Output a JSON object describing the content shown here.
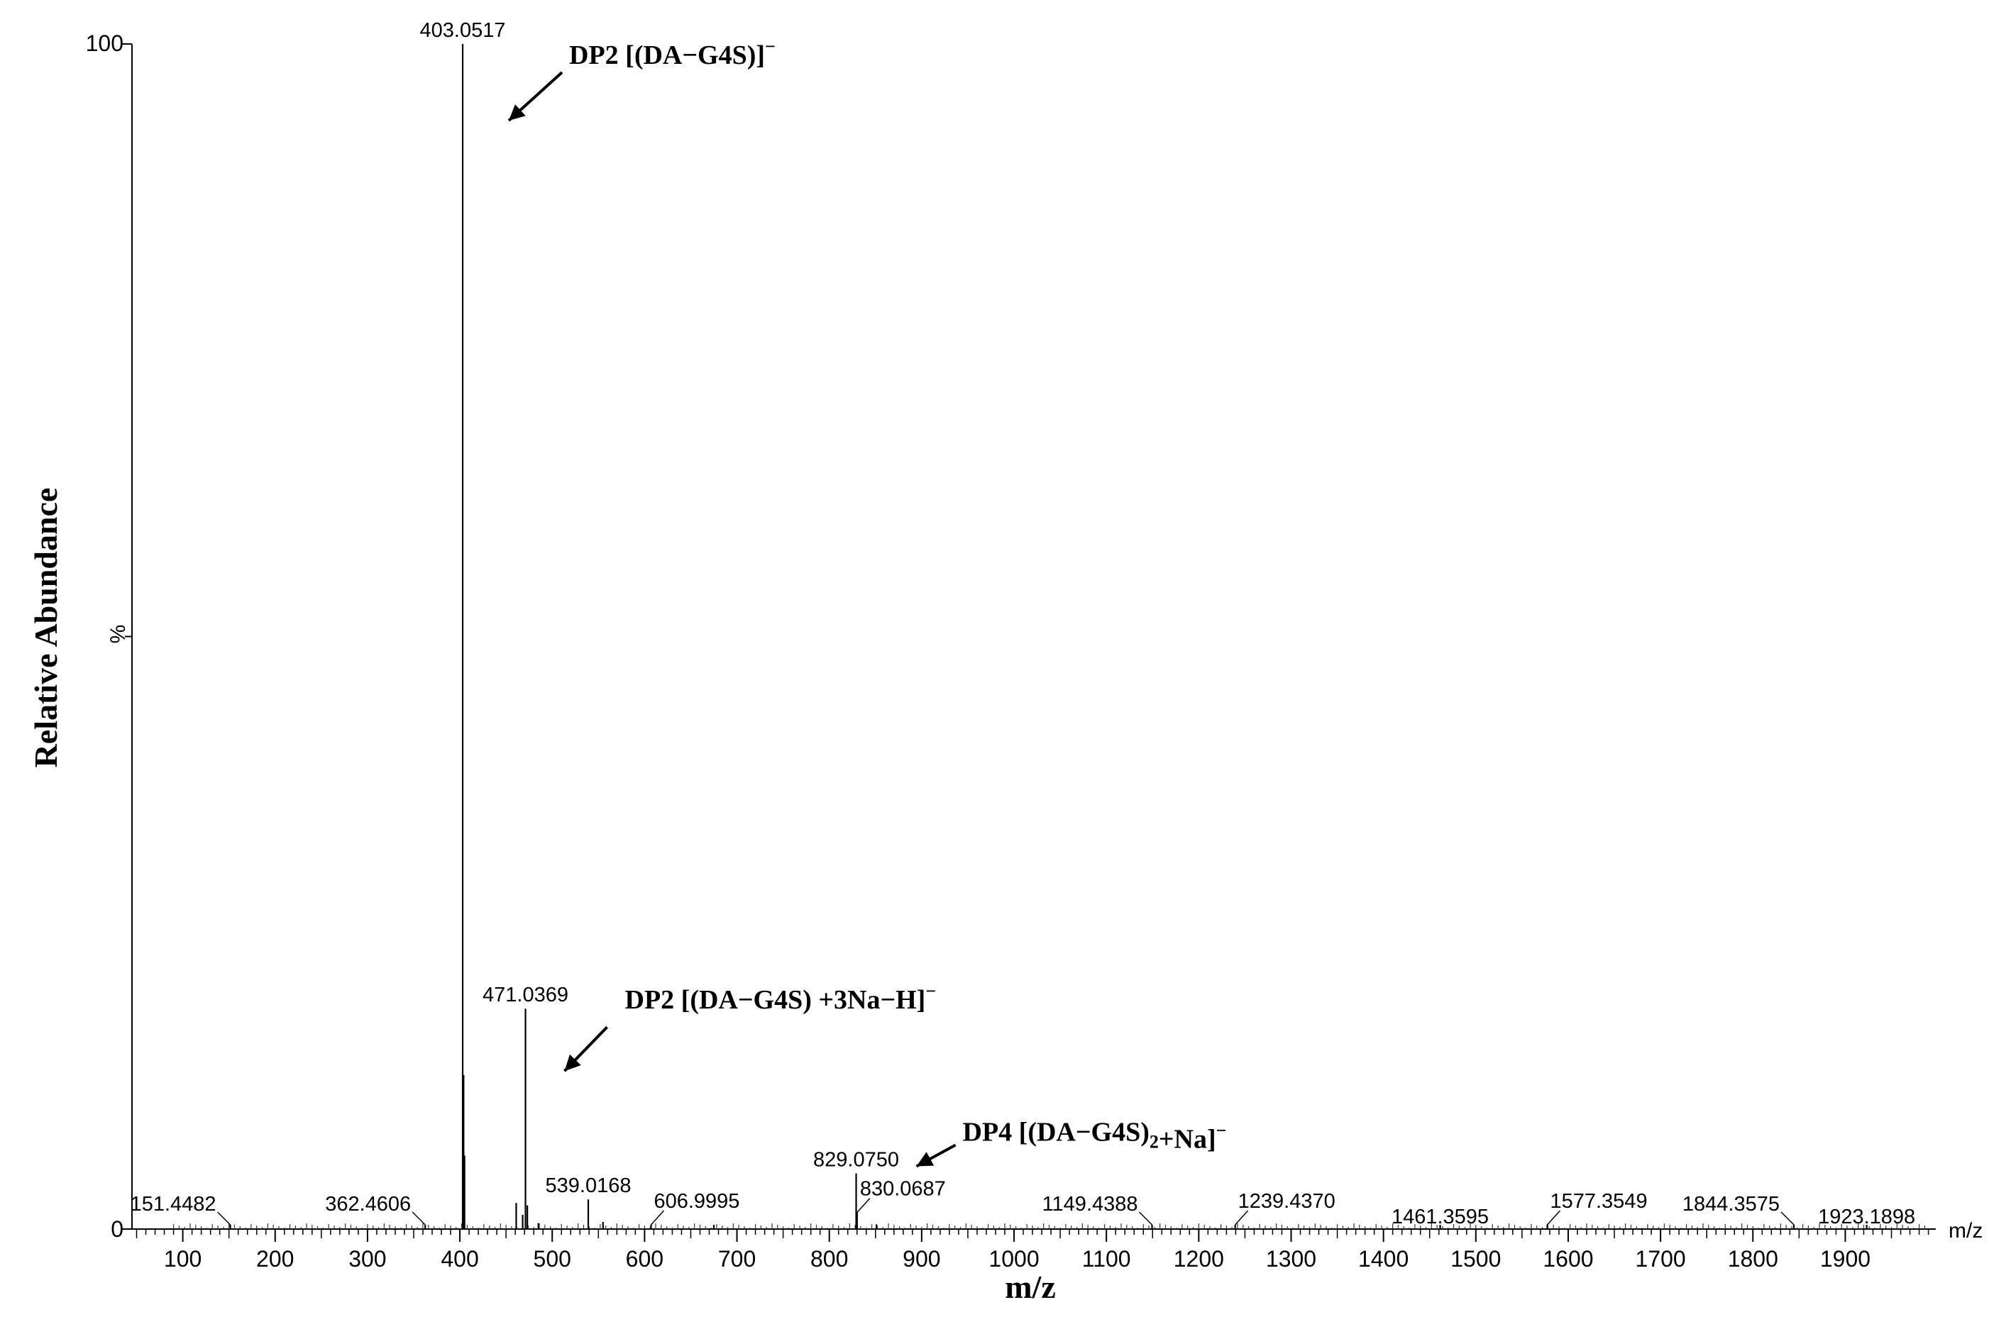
{
  "chart_data": {
    "type": "bar",
    "title": "",
    "xlabel": "m/z",
    "ylabel": "Relative Abundance",
    "y_tick_unit": "%",
    "x_unit_label": "m/z",
    "xlim": [
      45,
      1998
    ],
    "ylim": [
      0,
      100
    ],
    "y_ticks": [
      "0",
      "100"
    ],
    "x_ticks": [
      100,
      200,
      300,
      400,
      500,
      600,
      700,
      800,
      900,
      1000,
      1100,
      1200,
      1300,
      1400,
      1500,
      1600,
      1700,
      1800,
      1900
    ],
    "grid": false,
    "peaks": [
      {
        "mz": 151.4482,
        "intensity": 0.3
      },
      {
        "mz": 362.4606,
        "intensity": 0.3
      },
      {
        "mz": 403.0517,
        "intensity": 100
      },
      {
        "mz": 404.05,
        "intensity": 13
      },
      {
        "mz": 405.05,
        "intensity": 6.2
      },
      {
        "mz": 461.0,
        "intensity": 2.2
      },
      {
        "mz": 468.0,
        "intensity": 1.2
      },
      {
        "mz": 471.0369,
        "intensity": 18.6
      },
      {
        "mz": 473.04,
        "intensity": 2.0
      },
      {
        "mz": 485.0,
        "intensity": 0.5
      },
      {
        "mz": 539.0168,
        "intensity": 2.5
      },
      {
        "mz": 555.0,
        "intensity": 0.6
      },
      {
        "mz": 606.9995,
        "intensity": 0.3
      },
      {
        "mz": 675.0,
        "intensity": 0.3
      },
      {
        "mz": 829.075,
        "intensity": 4.7
      },
      {
        "mz": 830.0687,
        "intensity": 1.4
      },
      {
        "mz": 851.0,
        "intensity": 0.4
      },
      {
        "mz": 1149.4388,
        "intensity": 0.3
      },
      {
        "mz": 1239.437,
        "intensity": 0.3
      },
      {
        "mz": 1461.3595,
        "intensity": 0.3
      },
      {
        "mz": 1577.3549,
        "intensity": 0.3
      },
      {
        "mz": 1844.3575,
        "intensity": 0.3
      },
      {
        "mz": 1923.1898,
        "intensity": 0.3
      }
    ],
    "peak_labels": [
      {
        "text": "403.0517",
        "mz": 403.0517,
        "intensity": 100,
        "style": "top"
      },
      {
        "text": "471.0369",
        "mz": 471.0369,
        "intensity": 18.6,
        "style": "top"
      },
      {
        "text": "539.0168",
        "mz": 539.0168,
        "intensity": 2.5,
        "style": "top"
      },
      {
        "text": "829.0750",
        "mz": 829.075,
        "intensity": 4.7,
        "style": "top"
      },
      {
        "text": "151.4482",
        "mz": 151.4482,
        "intensity": 0.3,
        "style": "leader-left"
      },
      {
        "text": "362.4606",
        "mz": 362.4606,
        "intensity": 0.3,
        "style": "leader-left"
      },
      {
        "text": "606.9995",
        "mz": 606.9995,
        "intensity": 0.3,
        "style": "leader-right"
      },
      {
        "text": "830.0687",
        "mz": 830.0687,
        "intensity": 1.4,
        "style": "leader-right"
      },
      {
        "text": "1149.4388",
        "mz": 1149.4388,
        "intensity": 0.3,
        "style": "leader-left"
      },
      {
        "text": "1239.4370",
        "mz": 1239.437,
        "intensity": 0.3,
        "style": "leader-right"
      },
      {
        "text": "1461.3595",
        "mz": 1461.3595,
        "intensity": 0.3,
        "style": "plain"
      },
      {
        "text": "1577.3549",
        "mz": 1577.3549,
        "intensity": 0.3,
        "style": "leader-right"
      },
      {
        "text": "1844.3575",
        "mz": 1844.3575,
        "intensity": 0.3,
        "style": "leader-left"
      },
      {
        "text": "1923.1898",
        "mz": 1923.1898,
        "intensity": 0.3,
        "style": "plain"
      }
    ],
    "annotations": [
      {
        "name": "annotation-dp2",
        "parts": [
          {
            "t": "DP2 [(DA−G4S)]"
          },
          {
            "t": "−",
            "sup": true
          }
        ],
        "mz": 403.0517,
        "intensity": 100
      },
      {
        "name": "annotation-dp2-na",
        "parts": [
          {
            "t": "DP2 [(DA−G4S) +3Na−H]"
          },
          {
            "t": "−",
            "sup": true
          }
        ],
        "mz": 471.0369,
        "intensity": 18.6
      },
      {
        "name": "annotation-dp4",
        "parts": [
          {
            "t": "DP4 [(DA−G4S)"
          },
          {
            "t": "2",
            "sub": true
          },
          {
            "t": "+Na]"
          },
          {
            "t": "−",
            "sup": true
          }
        ],
        "mz": 829.075,
        "intensity": 4.7
      }
    ]
  }
}
